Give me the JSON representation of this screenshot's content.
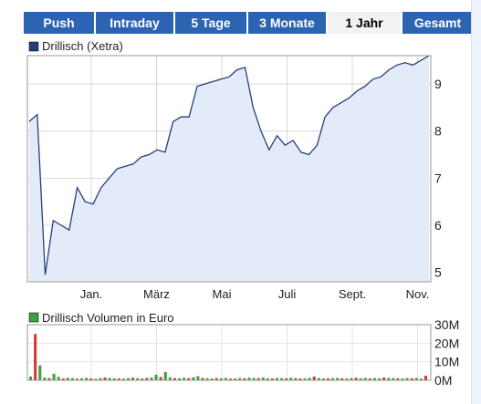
{
  "tabs": [
    {
      "label": "Push",
      "active": false
    },
    {
      "label": "Intraday",
      "active": false
    },
    {
      "label": "5 Tage",
      "active": false
    },
    {
      "label": "3 Monate",
      "active": false
    },
    {
      "label": "1 Jahr",
      "active": true
    },
    {
      "label": "Gesamt",
      "active": false
    }
  ],
  "colors": {
    "tab_bg": "#2c63b3",
    "tab_active_bg": "#f2f2f2",
    "price_line": "#24407a",
    "price_fill": "#e4ebf8",
    "volume_up": "#3ea13e",
    "volume_down": "#d23a3a"
  },
  "chart_data": [
    {
      "type": "area",
      "legend": "Drillisch (Xetra)",
      "x_tick_labels": [
        "Jan.",
        "März",
        "Mai",
        "Juli",
        "Sept.",
        "Nov."
      ],
      "y_ticks": [
        5,
        6,
        7,
        8,
        9
      ],
      "ylim": [
        4.8,
        9.6
      ],
      "grid": true,
      "series": [
        {
          "name": "Drillisch (Xetra)",
          "values": [
            8.2,
            8.35,
            4.95,
            6.1,
            6.0,
            5.9,
            6.8,
            6.5,
            6.45,
            6.8,
            7.0,
            7.2,
            7.25,
            7.3,
            7.45,
            7.5,
            7.6,
            7.55,
            8.2,
            8.3,
            8.3,
            8.95,
            9.0,
            9.05,
            9.1,
            9.15,
            9.3,
            9.35,
            8.5,
            8.0,
            7.6,
            7.9,
            7.7,
            7.8,
            7.55,
            7.5,
            7.7,
            8.3,
            8.5,
            8.6,
            8.7,
            8.85,
            8.95,
            9.1,
            9.15,
            9.3,
            9.4,
            9.45,
            9.4,
            9.5,
            9.6
          ]
        }
      ]
    },
    {
      "type": "bar",
      "legend": "Drillisch Volumen in Euro",
      "y_tick_labels": [
        "30M",
        "20M",
        "10M",
        "0M"
      ],
      "ylim": [
        0,
        30
      ],
      "series": [
        {
          "name": "Drillisch Volumen in Euro",
          "values": [
            2,
            25,
            8,
            1.5,
            1.2,
            3.5,
            1.8,
            1.0,
            1.4,
            1.2,
            0.9,
            1.1,
            1.3,
            1.0,
            0.8,
            1.2,
            1.5,
            1.3,
            1.1,
            1.0,
            0.9,
            1.2,
            1.4,
            1.1,
            1.0,
            1.3,
            1.5,
            3.0,
            1.8,
            4.5,
            1.6,
            1.2,
            1.1,
            1.4,
            1.2,
            1.6,
            2.2,
            1.3,
            1.1,
            1.0,
            1.2,
            1.1,
            1.3,
            0.9,
            1.0,
            1.2,
            1.1,
            1.4,
            1.3,
            1.2,
            1.5,
            1.1,
            1.0,
            1.3,
            1.2,
            1.1,
            1.4,
            1.2,
            1.0,
            1.1,
            1.3,
            2.0,
            1.2,
            1.0,
            1.1,
            1.2,
            1.3,
            1.1,
            1.0,
            1.2,
            1.4,
            1.1,
            1.3,
            1.0,
            1.2,
            1.1,
            1.5,
            1.3,
            1.2,
            1.1,
            1.0,
            1.2,
            1.1,
            1.3,
            1.0,
            2.5
          ]
        }
      ],
      "up_down": "alternating"
    }
  ]
}
